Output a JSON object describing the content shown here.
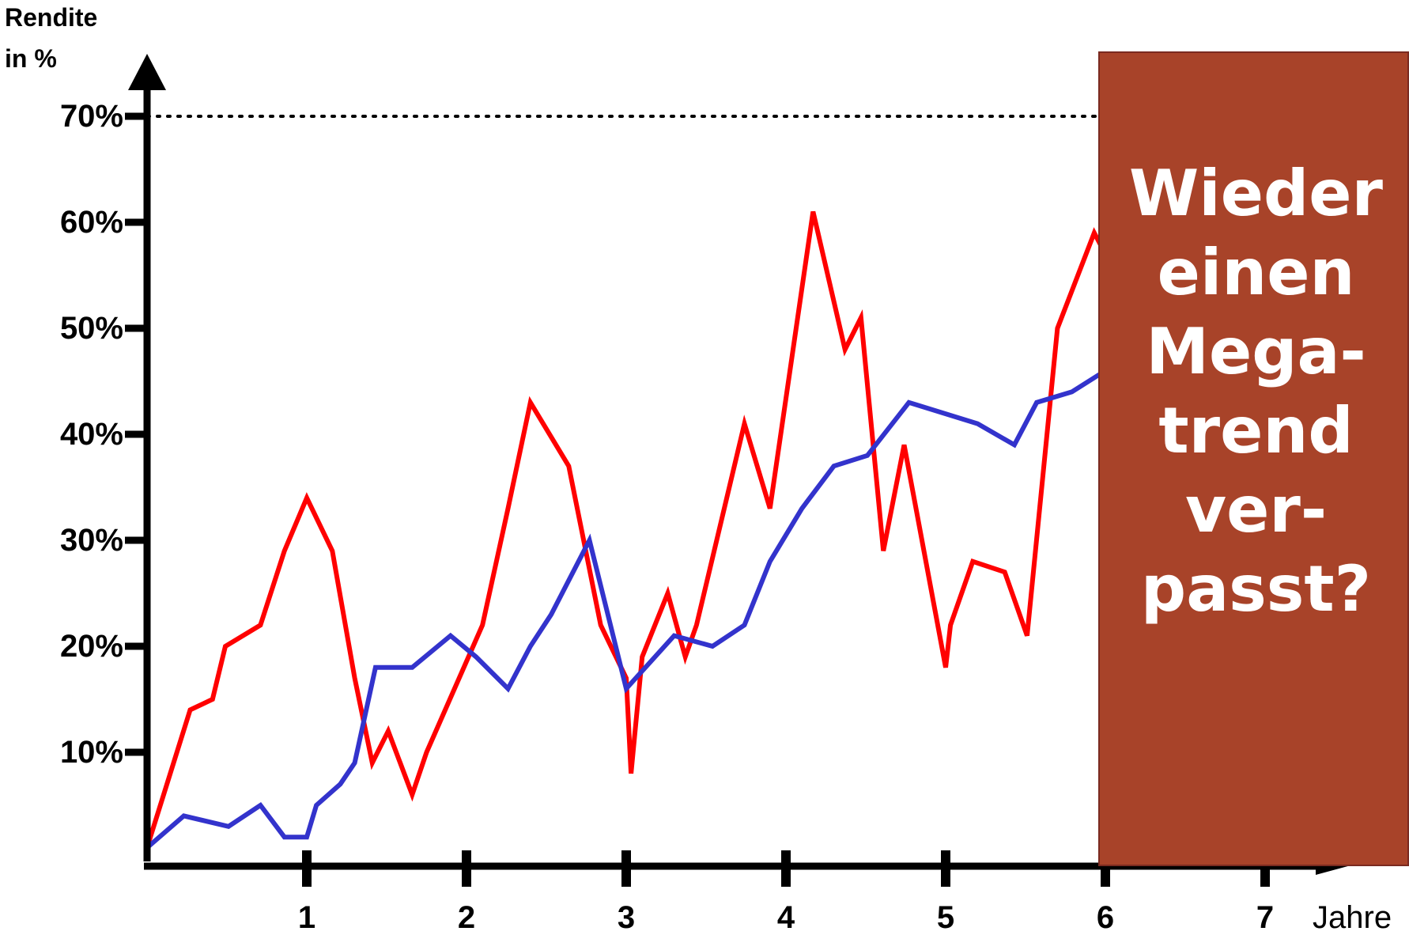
{
  "chart_data": {
    "type": "line",
    "ylabel": [
      "Rendite",
      "in %"
    ],
    "xlabel": "Jahre",
    "x_ticks": [
      "1",
      "2",
      "3",
      "4",
      "5",
      "6",
      "7"
    ],
    "y_ticks": [
      "10%",
      "20%",
      "30%",
      "40%",
      "50%",
      "60%",
      "70%"
    ],
    "xlim": [
      0,
      7.3
    ],
    "ylim": [
      0,
      70
    ],
    "reference_line": {
      "y": 70,
      "style": "dotted"
    },
    "series": [
      {
        "color": "#ff0000",
        "x": [
          0,
          0.27,
          0.41,
          0.49,
          0.71,
          0.86,
          1.0,
          1.16,
          1.3,
          1.41,
          1.51,
          1.66,
          1.75,
          2.1,
          2.26,
          2.4,
          2.64,
          2.84,
          3.0,
          3.03,
          3.1,
          3.26,
          3.37,
          3.44,
          3.74,
          3.9,
          4.17,
          4.37,
          4.47,
          4.61,
          4.74,
          5.0,
          5.03,
          5.17,
          5.37,
          5.51,
          5.7,
          5.93,
          6.0
        ],
        "y": [
          1,
          14,
          15,
          20,
          22,
          29,
          34,
          29,
          17,
          9,
          12,
          6,
          10,
          22,
          33,
          43,
          37,
          22,
          17,
          8,
          19,
          25,
          19,
          22,
          41,
          33,
          61,
          48,
          51,
          29,
          39,
          18,
          22,
          28,
          27,
          21,
          50,
          59,
          57
        ]
      },
      {
        "color": "#3333cc",
        "x": [
          0,
          0.23,
          0.51,
          0.71,
          0.86,
          1.0,
          1.06,
          1.21,
          1.3,
          1.43,
          1.66,
          1.9,
          2.06,
          2.26,
          2.4,
          2.53,
          2.77,
          3.0,
          3.3,
          3.54,
          3.74,
          3.9,
          4.1,
          4.3,
          4.51,
          4.77,
          5.2,
          5.43,
          5.57,
          5.79,
          6.0
        ],
        "y": [
          1,
          4,
          3,
          5,
          2,
          2,
          5,
          7,
          9,
          18,
          18,
          21,
          19,
          16,
          20,
          23,
          30,
          16,
          21,
          20,
          22,
          28,
          33,
          37,
          38,
          43,
          41,
          39,
          43,
          44,
          46
        ]
      }
    ]
  },
  "callout": {
    "text": "Wieder\neinen\nMega-\ntrend\nver-\npasst?",
    "background": "#a84329",
    "text_color": "#ffffff"
  }
}
